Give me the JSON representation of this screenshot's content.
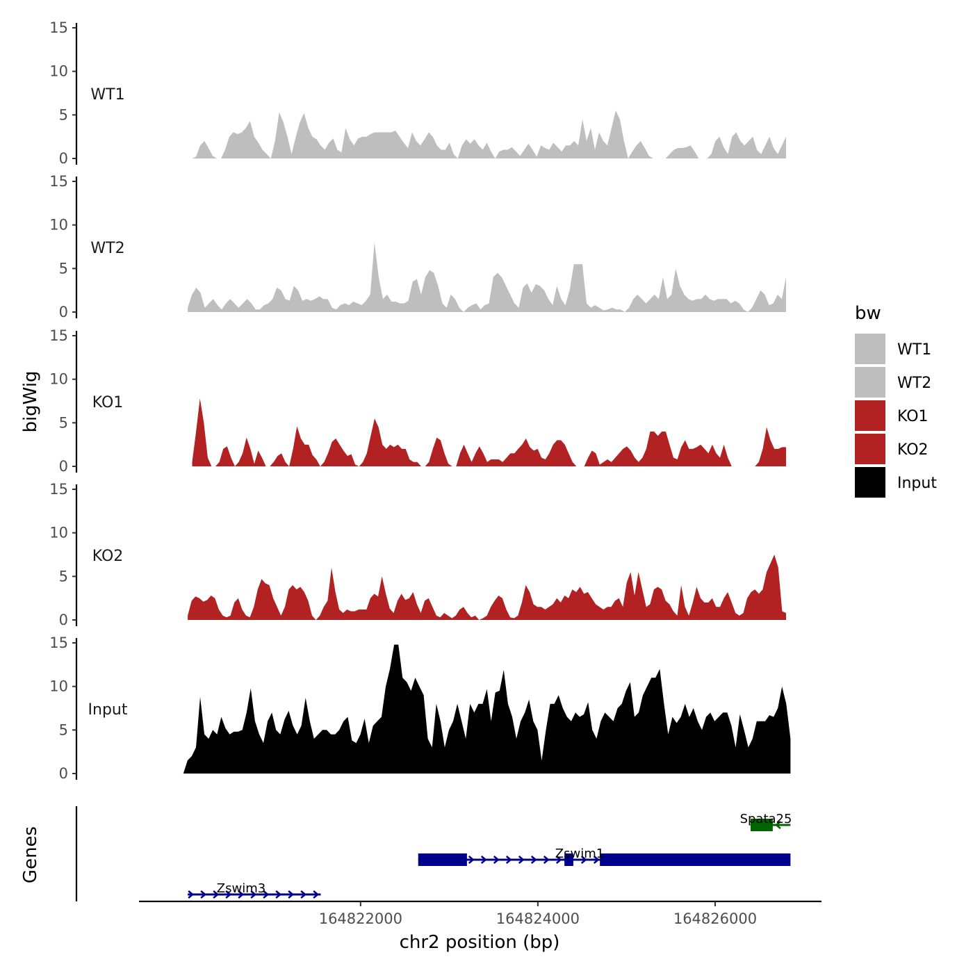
{
  "chart_data": {
    "type": "area",
    "title": "",
    "ylabel": "bigWig",
    "genes_label": "Genes",
    "xlabel": "chr2 position (bp)",
    "xlim": [
      164819500,
      164827200
    ],
    "data_xlim": [
      164820050,
      164826800
    ],
    "ylim": [
      0,
      15
    ],
    "yticks": [
      0,
      5,
      10,
      15
    ],
    "xticks": [
      164822000,
      164824000,
      164826000
    ],
    "xtick_labels": [
      "164822000",
      "164824000",
      "164826000"
    ],
    "legend": {
      "title": "bw",
      "position": "right",
      "entries": [
        {
          "label": "WT1",
          "color": "#bebebe"
        },
        {
          "label": "WT2",
          "color": "#bebebe"
        },
        {
          "label": "KO1",
          "color": "#b22222"
        },
        {
          "label": "KO2",
          "color": "#b22222"
        },
        {
          "label": "Input",
          "color": "#000000"
        }
      ]
    },
    "series": [
      {
        "name": "WT1",
        "color": "#bebebe",
        "x_start": 164820050,
        "x_end": 164826800,
        "values": [
          0,
          0,
          0.2,
          1.5,
          2,
          1.2,
          0.3,
          0,
          0,
          1,
          2.5,
          3,
          2.8,
          3,
          3.5,
          4.3,
          2.5,
          1.8,
          1,
          0.5,
          0,
          2,
          5.3,
          4.2,
          2.5,
          0.5,
          2.5,
          4.2,
          5.2,
          3.5,
          2.5,
          2.2,
          1.5,
          1,
          1.8,
          2.3,
          1,
          0.7,
          3.5,
          2.2,
          1.5,
          2.3,
          2.5,
          2.5,
          2.8,
          3,
          3,
          3,
          3,
          3,
          3.2,
          2.5,
          1.8,
          1.2,
          3,
          2,
          1.5,
          2.2,
          3,
          2.5,
          1.5,
          1,
          1,
          1.8,
          0.5,
          0,
          1.5,
          2.2,
          1.7,
          2.2,
          1.5,
          1,
          1.8,
          0.8,
          0,
          0.8,
          1,
          1,
          1.3,
          0.8,
          0.3,
          1,
          1.7,
          1,
          0.2,
          1.5,
          1.2,
          1,
          1.8,
          1.3,
          0.8,
          1.5,
          1.5,
          2,
          1.5,
          4.5,
          2,
          3.5,
          1,
          3,
          2,
          1.5,
          3.5,
          5.5,
          4.5,
          2,
          0,
          0.8,
          1.5,
          2,
          1.2,
          0.3,
          0,
          0,
          0,
          0,
          0.5,
          1,
          1.2,
          1.2,
          1.3,
          1.5,
          0.8,
          0,
          0,
          0,
          0.5,
          2,
          2.5,
          1.3,
          0.5,
          2.5,
          3,
          2,
          1.5,
          2,
          2.5,
          1,
          0.5,
          1.5,
          2.5,
          1.2,
          0.5,
          1.5,
          2.5
        ]
      },
      {
        "name": "WT2",
        "color": "#bebebe",
        "x_start": 164820050,
        "x_end": 164826800,
        "values": [
          0.5,
          2,
          2.8,
          2.2,
          0.5,
          1,
          1.5,
          0.8,
          0.3,
          1,
          1.5,
          1,
          0.5,
          1,
          1.5,
          1,
          0.3,
          0.3,
          0.8,
          1,
          1.5,
          2.8,
          2.5,
          1.5,
          1.3,
          3,
          2.5,
          1.3,
          1.5,
          1.3,
          1.5,
          1.8,
          1.5,
          1.5,
          0.5,
          0.3,
          0.8,
          1,
          0.8,
          1.2,
          1,
          0.8,
          1.3,
          2,
          8,
          4,
          1.5,
          2,
          1.2,
          1.2,
          1,
          1,
          1.3,
          3.5,
          3.8,
          2,
          4,
          4.8,
          4.5,
          3,
          1,
          0.5,
          2,
          1.5,
          0.5,
          0,
          0.5,
          0.8,
          1,
          0.3,
          0.8,
          1,
          4,
          4.5,
          4,
          3,
          2,
          1,
          0.5,
          2.8,
          3.3,
          2.2,
          3.2,
          3,
          2.5,
          1.5,
          0.8,
          3,
          1.5,
          0.8,
          2.5,
          5.5,
          5.5,
          5.5,
          1,
          0.5,
          0.8,
          0.5,
          0.2,
          0.3,
          0.5,
          0.3,
          0.3,
          0,
          0.5,
          1.5,
          2,
          1.5,
          1,
          1.5,
          2,
          1.5,
          4,
          1.5,
          2,
          5,
          3,
          2,
          1.5,
          1.3,
          1.5,
          1.5,
          2,
          1.5,
          1.3,
          1.5,
          1.5,
          1.5,
          1,
          1.3,
          1,
          0.3,
          0,
          0.5,
          1.5,
          2.5,
          2,
          0.8,
          1,
          2,
          1.5,
          4
        ]
      },
      {
        "name": "KO1",
        "color": "#b22222",
        "x_start": 164820100,
        "x_end": 164826800,
        "values": [
          0.5,
          4,
          7.8,
          5,
          1,
          0,
          0,
          0.5,
          2,
          2.3,
          1,
          0,
          0.5,
          1.5,
          3.3,
          2,
          0.3,
          1.8,
          1,
          0,
          0,
          0.5,
          1.2,
          1.5,
          0.5,
          0,
          2,
          4.6,
          3.2,
          2.5,
          2.5,
          1.3,
          0.8,
          0,
          0.5,
          1.5,
          2.8,
          3.2,
          2.5,
          1.8,
          1.2,
          1.4,
          0.2,
          0,
          0.5,
          1.5,
          3.5,
          5.5,
          4.5,
          2.5,
          2,
          2.5,
          2.2,
          2.5,
          2,
          2,
          0.8,
          0.5,
          0.5,
          0,
          0,
          0.5,
          2,
          3.3,
          3,
          1.5,
          0.3,
          0,
          0,
          1.5,
          2.5,
          1.5,
          0.5,
          1.5,
          2.3,
          1.5,
          0.5,
          0.8,
          0.8,
          0.8,
          0.5,
          1,
          1.5,
          1.5,
          2,
          2.5,
          3.2,
          2.2,
          1.8,
          2,
          1,
          0.8,
          1.5,
          2.5,
          3,
          3,
          2.5,
          1.5,
          0.5,
          0,
          0,
          0,
          1,
          1.8,
          1.5,
          0.2,
          0.5,
          0.8,
          0.5,
          1,
          1.5,
          2,
          2.3,
          1.8,
          1,
          0.5,
          1,
          2,
          4,
          4,
          3.5,
          4,
          4,
          2.5,
          1,
          0.8,
          2.2,
          3,
          2,
          2,
          2.2,
          2.5,
          2,
          1.5,
          2.5,
          1.5,
          1,
          2.5,
          1,
          0,
          0,
          0,
          0,
          0,
          0,
          0,
          0.5,
          2,
          4.5,
          3,
          2,
          2,
          2.2,
          2.2
        ]
      },
      {
        "name": "KO2",
        "color": "#b22222",
        "x_start": 164820050,
        "x_end": 164826800,
        "values": [
          0.5,
          2.2,
          2.7,
          2.5,
          2.1,
          2.3,
          2.8,
          2.5,
          1.2,
          0.5,
          0.3,
          0.5,
          2,
          2.5,
          1.2,
          0.5,
          0.3,
          1.5,
          3.5,
          4.7,
          4.2,
          4,
          2.5,
          1.5,
          0.5,
          1.5,
          3.5,
          4,
          3.5,
          3.8,
          3.2,
          2.2,
          0.5,
          0,
          0.5,
          1.5,
          2.2,
          6,
          3.2,
          1.2,
          0.8,
          1.2,
          1,
          1,
          1.2,
          1.2,
          1.2,
          2.5,
          3,
          2.7,
          5,
          3,
          1.3,
          0.8,
          2.2,
          3,
          2.3,
          2.5,
          3.2,
          1.8,
          0.8,
          2.2,
          2.5,
          1.5,
          0.5,
          0.3,
          0.8,
          0.5,
          0.2,
          0.5,
          1.2,
          1.5,
          0.8,
          0.3,
          0.5,
          0,
          0.2,
          0.5,
          1.5,
          2.2,
          2.8,
          2.5,
          1.2,
          0.3,
          0.2,
          0.5,
          2,
          4,
          3.2,
          1.8,
          1.5,
          1.5,
          1.2,
          1.5,
          1.8,
          2.5,
          2,
          2.8,
          2.5,
          3.5,
          3.2,
          3.8,
          3,
          3.2,
          2.5,
          1.8,
          1.5,
          1.2,
          1.5,
          1.5,
          2.2,
          2.5,
          1.5,
          4.3,
          5.5,
          2.8,
          5.5,
          3.5,
          1.5,
          1.8,
          3.5,
          3.8,
          3.5,
          2.2,
          1.8,
          1,
          0.5,
          4,
          1.5,
          0.5,
          2,
          3.8,
          2.5,
          2,
          2,
          2.5,
          1.5,
          1.5,
          2.5,
          3.2,
          2,
          0.8,
          0.5,
          0.8,
          2.5,
          3.2,
          3.5,
          3,
          3.5,
          5.5,
          6.5,
          7.5,
          6,
          1,
          0.8
        ]
      },
      {
        "name": "Input",
        "color": "#000000",
        "x_start": 164820000,
        "x_end": 164826850,
        "values": [
          0,
          1.5,
          2,
          3,
          8.8,
          4.5,
          4,
          5,
          4.5,
          6.5,
          5.2,
          4.5,
          4.8,
          4.8,
          5,
          7,
          9.8,
          6,
          4.5,
          3.5,
          6,
          7,
          5,
          4.5,
          6.2,
          7.2,
          5.5,
          4.5,
          5.5,
          8.7,
          6,
          4,
          4.5,
          5,
          5,
          4.5,
          4.5,
          5,
          6,
          6.5,
          3.8,
          3.5,
          4.5,
          6.3,
          3.5,
          5.5,
          6,
          6.5,
          10,
          12,
          14.8,
          14.8,
          11,
          10.5,
          9.5,
          11,
          10,
          9,
          4,
          3,
          8,
          6,
          3,
          5,
          6,
          8,
          6,
          4,
          8,
          7,
          8,
          8,
          9.7,
          6,
          9.3,
          9.5,
          11.9,
          8,
          6.5,
          4,
          6,
          7,
          8.5,
          6,
          5,
          1.5,
          5,
          8,
          8,
          9,
          7.5,
          6.5,
          6,
          7,
          6.5,
          6.8,
          8.2,
          5,
          4,
          6,
          7,
          6.5,
          6,
          7.5,
          8,
          9.5,
          10.5,
          6.5,
          7,
          9,
          10,
          11,
          11,
          12,
          8,
          4.5,
          6.5,
          5.8,
          6.5,
          8,
          6.5,
          7.5,
          6,
          5,
          6.5,
          7,
          6,
          6.5,
          7,
          7,
          5.5,
          3,
          6.8,
          5,
          3,
          4,
          6,
          6,
          6,
          6.7,
          6.5,
          7.5,
          10,
          8,
          4
        ]
      }
    ],
    "genes": [
      {
        "name": "Zswim3",
        "strand": "+",
        "color": "#00008b",
        "start": 164820050,
        "end": 164821550,
        "exons": [],
        "row": 3
      },
      {
        "name": "Zswim1",
        "strand": "+",
        "color": "#00008b",
        "start": 164822650,
        "end": 164826850,
        "exons": [
          [
            164822650,
            164823200
          ],
          [
            164824300,
            164824400
          ],
          [
            164824700,
            164826850
          ]
        ],
        "row": 2
      },
      {
        "name": "Spata25",
        "strand": "-",
        "color": "#006400",
        "start": 164826400,
        "end": 164826850,
        "exons": [
          [
            164826400,
            164826650
          ]
        ],
        "row": 1
      }
    ]
  }
}
